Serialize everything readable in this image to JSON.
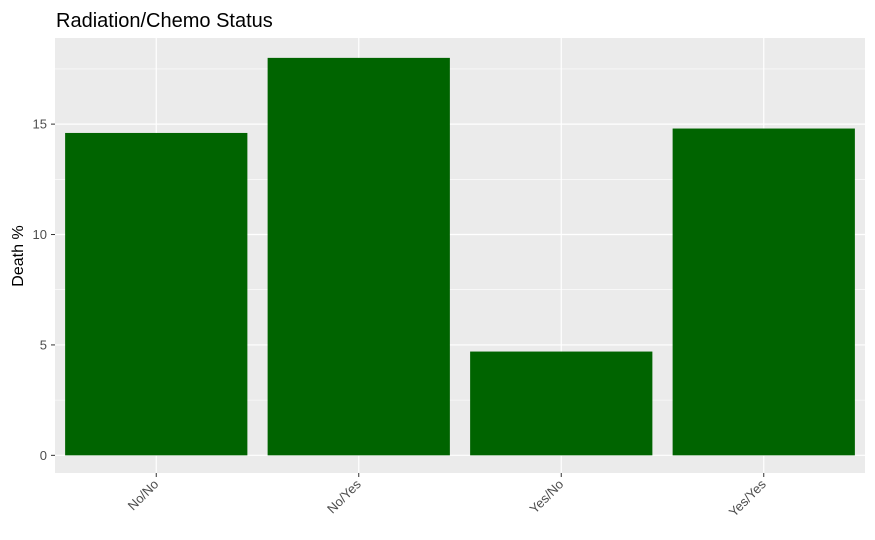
{
  "chart_data": {
    "type": "bar",
    "title": "Radiation/Chemo Status",
    "xlabel": "",
    "ylabel": "Death %",
    "categories": [
      "No/No",
      "No/Yes",
      "Yes/No",
      "Yes/Yes"
    ],
    "values": [
      14.6,
      18.0,
      4.7,
      14.8
    ],
    "ylim": [
      -0.8,
      18.9
    ],
    "yticks": [
      0,
      5,
      10,
      15
    ],
    "ytick_labels": [
      "0",
      "5",
      "10",
      "15"
    ],
    "grid": true,
    "legend": "none",
    "colors": {
      "bar": "#006400",
      "panel": "#ebebeb",
      "grid": "#ffffff",
      "tick_text": "#4d4d4d",
      "tick_mark": "#333333"
    }
  }
}
